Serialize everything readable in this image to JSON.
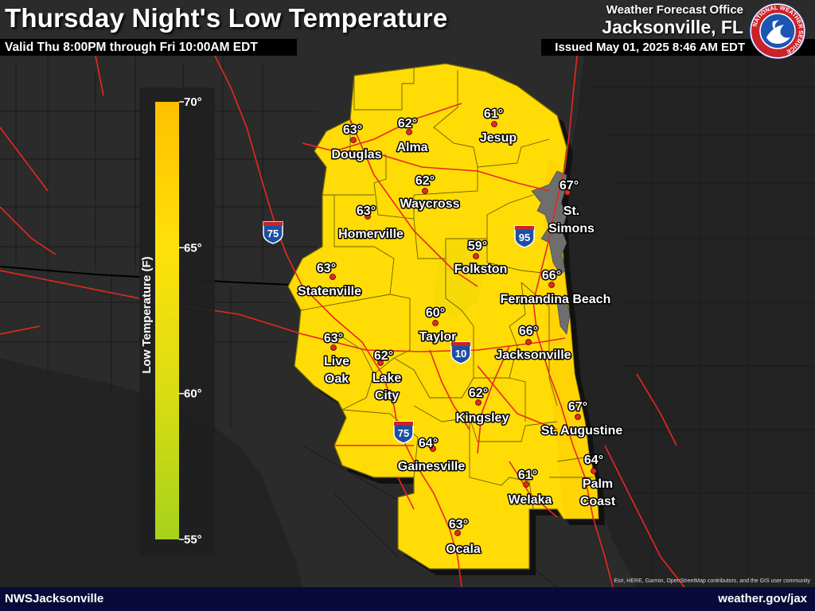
{
  "header": {
    "title": "Thursday Night's Low Temperature",
    "valid": "Valid Thu 8:00PM through Fri 10:00AM EDT",
    "office_line1": "Weather Forecast Office",
    "office_line2": "Jacksonville, FL",
    "issued": "Issued May 01, 2025 8:46 AM EDT",
    "logo_icon": "nws-logo-icon",
    "logo_text": "NATIONAL WEATHER SERVICE"
  },
  "legend": {
    "title": "Low Temperature (F)",
    "ticks": [
      {
        "label": "70°",
        "value": 70
      },
      {
        "label": "65°",
        "value": 65
      },
      {
        "label": "60°",
        "value": 60
      },
      {
        "label": "55°",
        "value": 55
      }
    ],
    "min": 55,
    "max": 70,
    "colors": {
      "55": "#a6d21b",
      "60": "#d9dc12",
      "65": "#ffe10a",
      "70": "#ffbf00"
    }
  },
  "cities": [
    {
      "name": "Douglas",
      "temp": "63°"
    },
    {
      "name": "Alma",
      "temp": "62°"
    },
    {
      "name": "Jesup",
      "temp": "61°"
    },
    {
      "name": "Waycross",
      "temp": "62°"
    },
    {
      "name": "St. Simons",
      "temp": "67°"
    },
    {
      "name": "Homerville",
      "temp": "63°"
    },
    {
      "name": "Folkston",
      "temp": "59°"
    },
    {
      "name": "Fernandina Beach",
      "temp": "66°"
    },
    {
      "name": "Statenville",
      "temp": "63°"
    },
    {
      "name": "Taylor",
      "temp": "60°"
    },
    {
      "name": "Jacksonville",
      "temp": "66°"
    },
    {
      "name": "Live Oak",
      "temp": "63°"
    },
    {
      "name": "Lake City",
      "temp": "62°"
    },
    {
      "name": "Kingsley",
      "temp": "62°"
    },
    {
      "name": "St. Augustine",
      "temp": "67°"
    },
    {
      "name": "Gainesville",
      "temp": "64°"
    },
    {
      "name": "Palm Coast",
      "temp": "64°"
    },
    {
      "name": "Welaka",
      "temp": "61°"
    },
    {
      "name": "Ocala",
      "temp": "63°"
    }
  ],
  "interstates": [
    {
      "number": "75"
    },
    {
      "number": "95"
    },
    {
      "number": "10"
    },
    {
      "number": "75"
    }
  ],
  "footer": {
    "left": "NWSJacksonville",
    "right": "weather.gov/jax"
  },
  "attribution": "Esri, HERE, Garmin, OpenStreetMap contributors, and the GIS user community",
  "colors": {
    "forecast_fill": "#ffdc05",
    "roads": "#e8281e",
    "land": "#2b2b2b",
    "water": "#222222",
    "city_dot": "#e8281e",
    "interstate_blue": "#1c4fa3"
  }
}
